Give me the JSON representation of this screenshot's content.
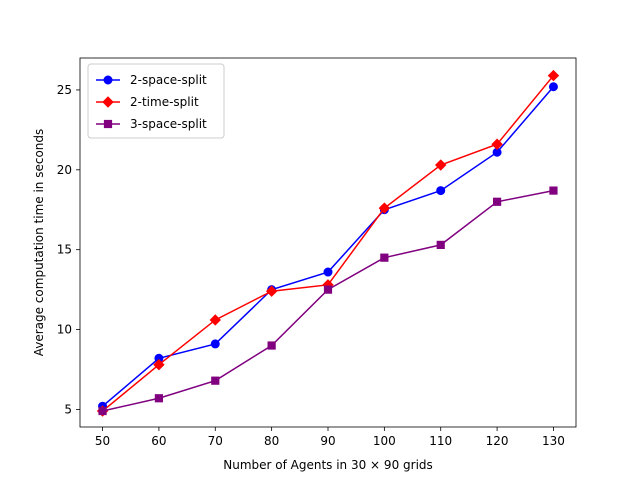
{
  "chart_data": {
    "type": "line",
    "xlabel": "Number of Agents in 30 × 90 grids",
    "ylabel": "Average computation time in seconds",
    "x": [
      50,
      60,
      70,
      80,
      90,
      100,
      110,
      120,
      130
    ],
    "xlim": [
      46,
      134
    ],
    "ylim": [
      3.9,
      27.0
    ],
    "xticks": [
      50,
      60,
      70,
      80,
      90,
      100,
      110,
      120,
      130
    ],
    "yticks": [
      5,
      10,
      15,
      20,
      25
    ],
    "grid": false,
    "legend_position": "top-left",
    "series": [
      {
        "name": "2-space-split",
        "color": "#0000ff",
        "marker": "circle",
        "values": [
          5.2,
          8.2,
          9.1,
          12.5,
          13.6,
          17.5,
          18.7,
          21.1,
          25.2
        ]
      },
      {
        "name": "2-time-split",
        "color": "#ff0000",
        "marker": "diamond",
        "values": [
          4.9,
          7.8,
          10.6,
          12.4,
          12.8,
          17.6,
          20.3,
          21.6,
          25.9
        ]
      },
      {
        "name": "3-space-split",
        "color": "#800080",
        "marker": "square",
        "values": [
          4.9,
          5.7,
          6.8,
          9.0,
          12.5,
          14.5,
          15.3,
          18.0,
          18.7
        ]
      }
    ]
  }
}
